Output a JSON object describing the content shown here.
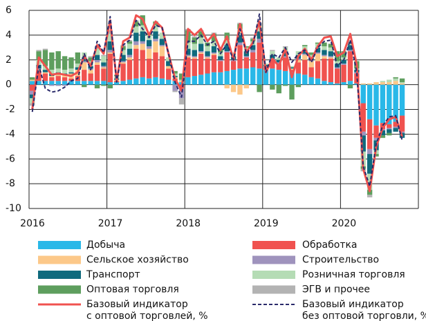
{
  "chart_data": {
    "type": "bar",
    "stacked": true,
    "grid": true,
    "categories": [
      "2016",
      null,
      null,
      null,
      null,
      null,
      null,
      null,
      null,
      null,
      null,
      null,
      "2017",
      null,
      null,
      null,
      null,
      null,
      null,
      null,
      null,
      null,
      null,
      null,
      "2018",
      null,
      null,
      null,
      null,
      null,
      null,
      null,
      null,
      null,
      null,
      null,
      "2019",
      null,
      null,
      null,
      null,
      null,
      null,
      null,
      null,
      null,
      null,
      null,
      "2020",
      null,
      null,
      null,
      null,
      null,
      null,
      null,
      null,
      null
    ],
    "ylim": [
      -10,
      6
    ],
    "yticks": [
      6,
      4,
      2,
      0,
      -2,
      -4,
      -6,
      -8,
      -10
    ],
    "series": [
      {
        "name": "Добыча",
        "kind": "bar",
        "color": "#29b8e8",
        "values": [
          0.3,
          0.3,
          0.3,
          0.3,
          0.3,
          0.3,
          0.3,
          0.3,
          0.3,
          0.3,
          0.3,
          0.3,
          0.2,
          0.2,
          0.3,
          0.4,
          0.5,
          0.6,
          0.5,
          0.6,
          0.5,
          0.4,
          0.3,
          0.2,
          0.6,
          0.7,
          0.8,
          0.9,
          1.0,
          1.0,
          1.1,
          1.2,
          1.3,
          1.3,
          1.4,
          1.3,
          1.2,
          1.3,
          1.2,
          1.1,
          1.0,
          0.9,
          0.8,
          0.6,
          0.5,
          0.3,
          0.2,
          0.1,
          0.2,
          0.3,
          0.1,
          -1.5,
          -2.8,
          -3.3,
          -3.1,
          -3.2,
          -3.0,
          -2.5
        ]
      },
      {
        "name": "Обработка",
        "kind": "bar",
        "color": "#f0524f",
        "values": [
          -0.5,
          0.8,
          0.6,
          0.3,
          0.4,
          0.3,
          0.2,
          0.4,
          0.9,
          0.6,
          1.3,
          1.0,
          2.3,
          0.1,
          1.4,
          1.6,
          2.4,
          2.2,
          1.6,
          2.0,
          1.8,
          0.9,
          0.2,
          -0.3,
          1.6,
          1.4,
          1.7,
          1.2,
          1.4,
          0.9,
          1.5,
          0.7,
          1.9,
          0.9,
          1.2,
          2.1,
          0.3,
          0.7,
          0.5,
          1.1,
          0.2,
          0.9,
          1.2,
          0.8,
          1.4,
          1.8,
          1.9,
          1.2,
          1.4,
          2.4,
          0.8,
          -2.3,
          -2.4,
          -1.0,
          -0.5,
          -0.3,
          -0.4,
          -1.3
        ]
      },
      {
        "name": "Сельское хозяйство",
        "kind": "bar",
        "color": "#fcc889",
        "values": [
          0.1,
          0.1,
          0.1,
          0.1,
          0.1,
          0.2,
          0.4,
          0.5,
          0.6,
          0.3,
          0.2,
          0.1,
          0.1,
          0.1,
          0.1,
          0.2,
          0.3,
          0.5,
          0.8,
          0.9,
          0.8,
          0.2,
          0.1,
          0.1,
          0.1,
          0.1,
          0.1,
          0.1,
          0.1,
          0,
          -0.3,
          -0.6,
          -0.8,
          -0.3,
          0,
          0,
          0,
          0,
          0,
          0,
          0.1,
          0.2,
          0.4,
          0.5,
          0.6,
          0.2,
          0.1,
          0,
          0,
          0,
          0,
          0.1,
          0.1,
          0.2,
          0.2,
          0.2,
          0.3,
          0.1
        ]
      },
      {
        "name": "Строительство",
        "kind": "bar",
        "color": "#9f93bd",
        "values": [
          -0.3,
          0.1,
          0,
          -0.1,
          -0.1,
          -0.1,
          0,
          0,
          0.1,
          0.1,
          0.2,
          0.1,
          0.2,
          0,
          0.1,
          0.2,
          0.3,
          0.2,
          0.2,
          0.2,
          0.1,
          0,
          -0.5,
          -0.8,
          0.1,
          0.1,
          0.1,
          0.1,
          0.1,
          0.1,
          0.1,
          0.1,
          0.2,
          0.1,
          0.2,
          0.3,
          0,
          0.1,
          0.1,
          0.1,
          0,
          0.1,
          0.1,
          0.1,
          0.1,
          0.1,
          0.1,
          0.1,
          0.1,
          0.1,
          0.1,
          -0.3,
          -0.4,
          -0.2,
          -0.1,
          -0.1,
          -0.1,
          -0.1
        ]
      },
      {
        "name": "Транспорт",
        "kind": "bar",
        "color": "#0f6a7d",
        "values": [
          -0.3,
          0.3,
          0.2,
          0.2,
          0.2,
          0.1,
          0.1,
          0.2,
          0.3,
          0.2,
          0.4,
          0.3,
          0.7,
          0.1,
          0.5,
          0.5,
          0.7,
          0.8,
          0.5,
          0.6,
          0.5,
          0.4,
          0.1,
          0,
          0.5,
          0.5,
          0.6,
          0.4,
          0.5,
          0.3,
          0.5,
          0.3,
          0.6,
          0.4,
          0.4,
          0.6,
          0.1,
          0.3,
          0.2,
          0.4,
          0.1,
          0.3,
          0.3,
          0.2,
          0.4,
          0.4,
          0.4,
          0.3,
          0.3,
          0.4,
          0.2,
          -1.3,
          -1.6,
          -0.8,
          -0.4,
          -0.3,
          -0.3,
          -0.4
        ]
      },
      {
        "name": "Розничная торговля",
        "kind": "bar",
        "color": "#b5dcb5",
        "values": [
          -0.4,
          0.4,
          0.3,
          0.3,
          0.3,
          0.3,
          0.3,
          0.3,
          0.4,
          0.4,
          0.5,
          0.5,
          0.6,
          0.2,
          0.4,
          0.4,
          0.5,
          0.5,
          0.4,
          0.5,
          0.5,
          0.3,
          0.2,
          0.1,
          0.5,
          0.5,
          0.5,
          0.4,
          0.4,
          0.3,
          0.4,
          0.3,
          0.5,
          0.3,
          0.3,
          0.5,
          0.1,
          0.3,
          0.2,
          0.3,
          0.1,
          0.3,
          0.3,
          0.2,
          0.3,
          0.3,
          0.3,
          0.2,
          0.2,
          0.3,
          0.1,
          -1.2,
          -1.3,
          -0.3,
          0.1,
          0.2,
          0.2,
          0.1
        ]
      },
      {
        "name": "Оптовая торговля",
        "kind": "bar",
        "color": "#5e9e5e",
        "values": [
          0.2,
          0.7,
          1.3,
          1.4,
          1.4,
          1.1,
          0.9,
          0.9,
          -0.2,
          0.3,
          -0.3,
          -0.1,
          -0.3,
          0.1,
          0.3,
          0.2,
          0.4,
          0.8,
          0.2,
          0.3,
          0,
          0,
          0.2,
          0.5,
          1.0,
          0.5,
          0.5,
          0.3,
          0.6,
          0.3,
          0.6,
          0,
          0.4,
          0.1,
          0.2,
          -0.6,
          0,
          -0.4,
          -0.7,
          -0.1,
          -1.2,
          -0.2,
          0.1,
          0.2,
          0.1,
          0.3,
          0.3,
          0.8,
          0.5,
          -0.3,
          0.6,
          -0.2,
          -0.4,
          -0.2,
          -0.2,
          -0.2,
          0.1,
          0.3
        ]
      },
      {
        "name": "ЭГВ и прочее",
        "kind": "bar",
        "color": "#b3b3b3",
        "values": [
          -0.2,
          0.1,
          0.1,
          0,
          0,
          0,
          0,
          0,
          0,
          0.1,
          0.2,
          0.1,
          0.3,
          0,
          0.1,
          0.1,
          0.1,
          0,
          0,
          0,
          0,
          0,
          -0.1,
          -0.5,
          0.1,
          0.1,
          0.1,
          0,
          0.1,
          0,
          0,
          0,
          0.1,
          0,
          0.1,
          0.2,
          0,
          0.1,
          0,
          0.1,
          0,
          0,
          0,
          0,
          0,
          0,
          0,
          0,
          0,
          0.1,
          0,
          -0.2,
          -0.2,
          0,
          0,
          0,
          0,
          0
        ]
      },
      {
        "name": "Базовый индикатор\nс оптовой торговлей, %",
        "kind": "line",
        "color": "#f0524f",
        "values": [
          -2,
          2.2,
          1.5,
          0.8,
          0.9,
          0.8,
          0.7,
          1.0,
          2.3,
          1.5,
          3.2,
          2.5,
          5.2,
          0.3,
          3.5,
          3.8,
          5.6,
          5.3,
          4.0,
          5.1,
          4.6,
          2.5,
          0.5,
          -0.5,
          4.5,
          4.0,
          4.5,
          3.5,
          4.1,
          2.8,
          3.9,
          2.0,
          4.9,
          2.6,
          3.4,
          5.1,
          1.0,
          2.1,
          1.5,
          2.9,
          0.6,
          2.3,
          2.9,
          2.0,
          3.1,
          3.8,
          3.9,
          2.3,
          2.6,
          4.1,
          1.6,
          -6.8,
          -8.6,
          -5.0,
          -3.5,
          -2.8,
          -2.6,
          -4.2
        ]
      },
      {
        "name": "Базовый индикатор\nбез оптовой торговли, %",
        "kind": "line",
        "dash": true,
        "color": "#2a2a6a",
        "values": [
          -2.2,
          1.5,
          -0.3,
          -0.6,
          -0.5,
          -0.2,
          0.3,
          0.5,
          2.5,
          1.2,
          3.5,
          2.6,
          5.5,
          0.2,
          3.2,
          3.6,
          5.2,
          4.5,
          3.8,
          4.8,
          4.6,
          2.5,
          0.2,
          -1,
          3.5,
          3.5,
          4.0,
          3.2,
          3.5,
          2.5,
          3.3,
          2.0,
          4.5,
          2.5,
          3.2,
          5.7,
          1.0,
          2.5,
          2.2,
          3.0,
          1.8,
          2.5,
          2.8,
          1.8,
          3.0,
          3.5,
          3.6,
          1.5,
          2.0,
          3.6,
          1.0,
          -6.6,
          -8.2,
          -4.8,
          -3.3,
          -2.6,
          -2.5,
          -4.5
        ]
      }
    ]
  }
}
